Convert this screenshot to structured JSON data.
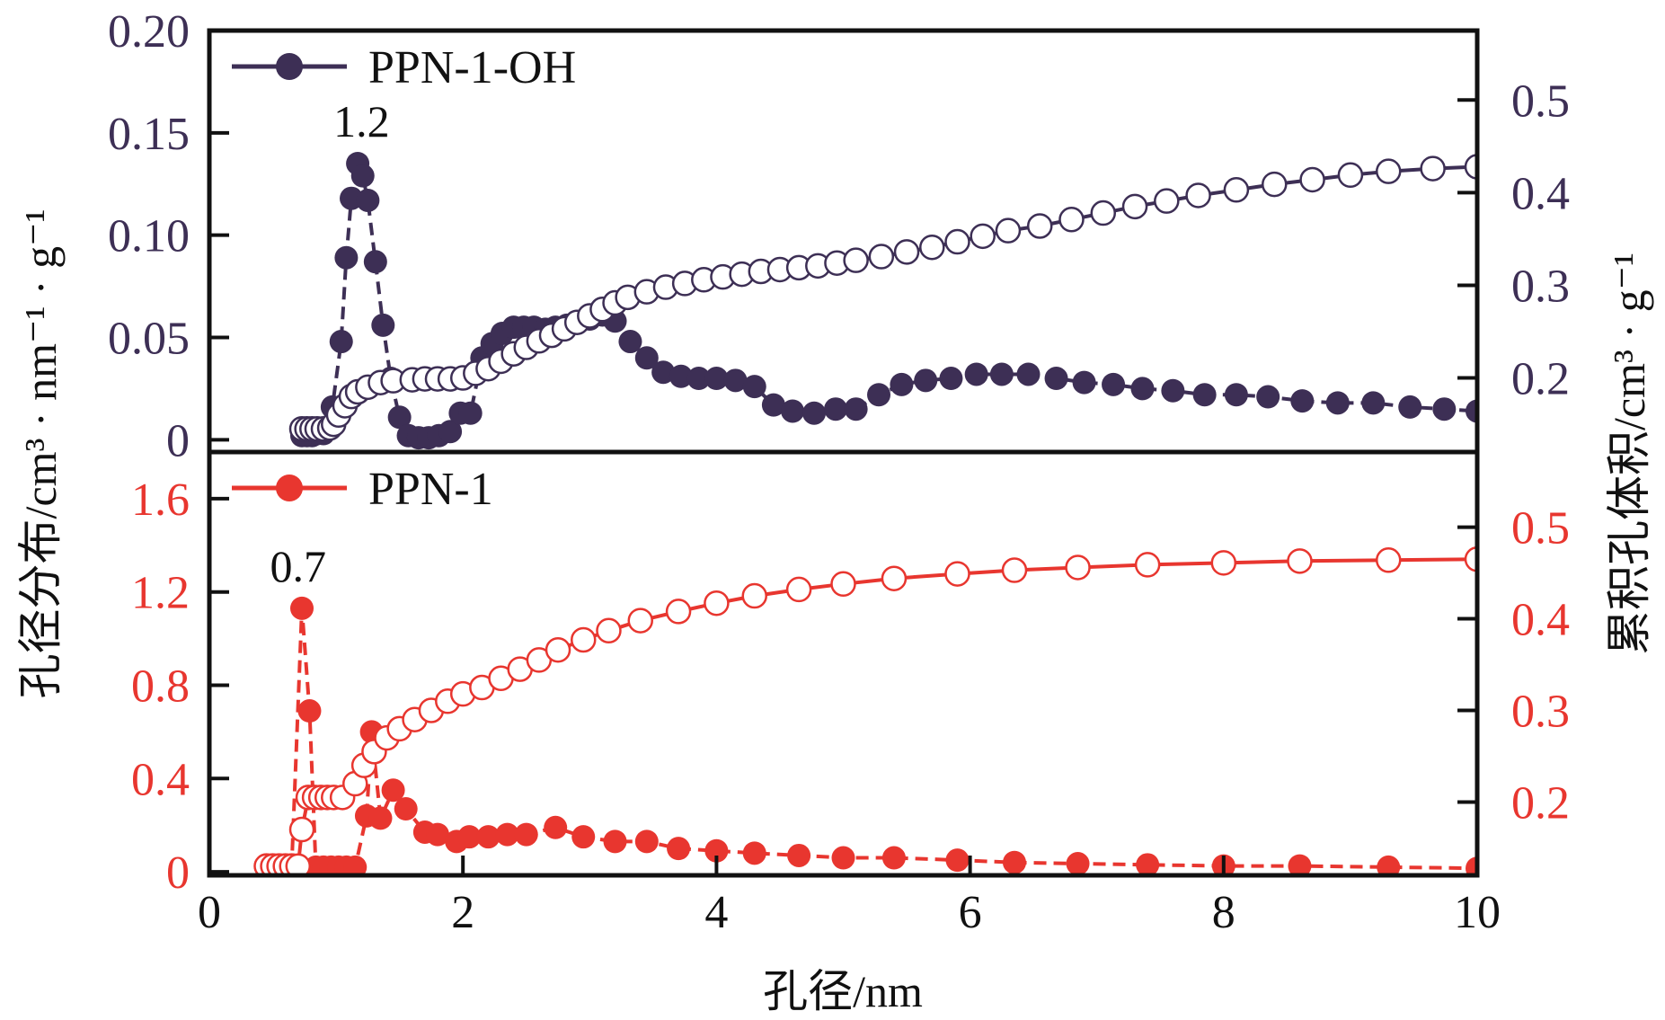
{
  "chart_data": {
    "type": "scatter",
    "x_axis": {
      "label": "孔径/nm",
      "range": [
        0,
        10
      ],
      "ticks": [
        0,
        2,
        4,
        6,
        8,
        10
      ],
      "tick_labels": [
        "0",
        "2",
        "4",
        "6",
        "8",
        "10"
      ]
    },
    "left_axis_label": "孔径分布/cm³ · nm⁻¹ · g⁻¹",
    "right_axis_label": "累积孔体积/cm³ · g⁻¹",
    "colors": {
      "ppn1_oh": "#3d2f55",
      "ppn1": "#e8362f",
      "frame": "#111111"
    },
    "panels": [
      {
        "name": "PPN-1-OH",
        "legend": "PPN-1-OH",
        "color_key": "ppn1_oh",
        "annotation": {
          "text": "1.2",
          "x": 1.2
        },
        "left_axis": {
          "range": [
            -0.006,
            0.2
          ],
          "ticks": [
            0,
            0.05,
            0.1,
            0.15,
            0.2
          ],
          "tick_labels": [
            "0",
            "0.05",
            "0.10",
            "0.15",
            "0.20"
          ]
        },
        "right_axis": {
          "range": [
            0.12,
            0.575
          ],
          "ticks": [
            0.2,
            0.3,
            0.4,
            0.5
          ],
          "tick_labels": [
            "0.2",
            "0.3",
            "0.4",
            "0.5"
          ]
        },
        "series": [
          {
            "name": "PPN-1-OH pore size distribution",
            "axis": "left",
            "marker": "filled",
            "x": [
              0.73,
              0.77,
              0.81,
              0.85,
              0.9,
              0.97,
              1.04,
              1.08,
              1.12,
              1.17,
              1.21,
              1.25,
              1.31,
              1.37,
              1.43,
              1.5,
              1.57,
              1.65,
              1.73,
              1.81,
              1.9,
              1.98,
              2.06,
              2.15,
              2.23,
              2.31,
              2.4,
              2.48,
              2.56,
              2.65,
              2.73,
              2.82,
              2.9,
              3.0,
              3.1,
              3.2,
              3.32,
              3.45,
              3.58,
              3.72,
              3.86,
              4.0,
              4.15,
              4.3,
              4.45,
              4.6,
              4.77,
              4.94,
              5.1,
              5.28,
              5.46,
              5.65,
              5.85,
              6.05,
              6.25,
              6.46,
              6.68,
              6.9,
              7.13,
              7.36,
              7.6,
              7.85,
              8.1,
              8.35,
              8.62,
              8.9,
              9.18,
              9.47,
              9.74,
              10.0
            ],
            "y": [
              0.002,
              0.002,
              0.002,
              0.003,
              0.003,
              0.016,
              0.048,
              0.089,
              0.118,
              0.135,
              0.129,
              0.117,
              0.087,
              0.056,
              0.03,
              0.011,
              0.002,
              0.001,
              0.001,
              0.002,
              0.004,
              0.013,
              0.013,
              0.04,
              0.047,
              0.052,
              0.055,
              0.055,
              0.055,
              0.054,
              0.055,
              0.056,
              0.057,
              0.059,
              0.061,
              0.058,
              0.048,
              0.04,
              0.033,
              0.031,
              0.03,
              0.03,
              0.029,
              0.026,
              0.017,
              0.014,
              0.013,
              0.015,
              0.015,
              0.022,
              0.027,
              0.029,
              0.03,
              0.032,
              0.032,
              0.032,
              0.03,
              0.028,
              0.027,
              0.025,
              0.024,
              0.022,
              0.022,
              0.021,
              0.019,
              0.018,
              0.018,
              0.016,
              0.015,
              0.014
            ]
          },
          {
            "name": "PPN-1-OH cumulative pore volume",
            "axis": "right",
            "marker": "open",
            "x": [
              0.73,
              0.77,
              0.81,
              0.85,
              0.9,
              0.95,
              0.98,
              1.02,
              1.07,
              1.12,
              1.17,
              1.25,
              1.35,
              1.45,
              1.6,
              1.7,
              1.8,
              1.9,
              2.0,
              2.1,
              2.2,
              2.3,
              2.4,
              2.5,
              2.6,
              2.7,
              2.8,
              2.9,
              3.0,
              3.1,
              3.2,
              3.3,
              3.45,
              3.6,
              3.75,
              3.9,
              4.05,
              4.2,
              4.35,
              4.5,
              4.65,
              4.8,
              4.95,
              5.1,
              5.3,
              5.5,
              5.7,
              5.9,
              6.1,
              6.3,
              6.55,
              6.8,
              7.05,
              7.3,
              7.55,
              7.8,
              8.1,
              8.4,
              8.7,
              9.0,
              9.3,
              9.65,
              10.0
            ],
            "y": [
              0.145,
              0.145,
              0.145,
              0.145,
              0.145,
              0.146,
              0.15,
              0.16,
              0.17,
              0.18,
              0.185,
              0.19,
              0.195,
              0.197,
              0.198,
              0.199,
              0.199,
              0.199,
              0.2,
              0.205,
              0.21,
              0.218,
              0.226,
              0.233,
              0.24,
              0.246,
              0.253,
              0.26,
              0.267,
              0.274,
              0.281,
              0.287,
              0.293,
              0.298,
              0.302,
              0.306,
              0.309,
              0.312,
              0.315,
              0.317,
              0.319,
              0.321,
              0.324,
              0.327,
              0.331,
              0.336,
              0.341,
              0.347,
              0.353,
              0.359,
              0.364,
              0.371,
              0.378,
              0.385,
              0.391,
              0.397,
              0.403,
              0.409,
              0.414,
              0.419,
              0.423,
              0.426,
              0.428
            ]
          }
        ]
      },
      {
        "name": "PPN-1",
        "legend": "PPN-1",
        "color_key": "ppn1",
        "annotation": {
          "text": "0.7",
          "x": 0.7
        },
        "left_axis": {
          "range": [
            -0.015,
            1.8
          ],
          "ticks": [
            0,
            0.4,
            0.8,
            1.2,
            1.6
          ],
          "tick_labels": [
            "0",
            "0.4",
            "0.8",
            "1.2",
            "1.6"
          ]
        },
        "right_axis": {
          "range": [
            0.12,
            0.582
          ],
          "ticks": [
            0.2,
            0.3,
            0.4,
            0.5
          ],
          "tick_labels": [
            "0.2",
            "0.3",
            "0.4",
            "0.5"
          ]
        },
        "series": [
          {
            "name": "PPN-1 pore size distribution",
            "axis": "left",
            "marker": "filled",
            "x": [
              0.45,
              0.5,
              0.55,
              0.6,
              0.65,
              0.73,
              0.79,
              0.84,
              0.9,
              0.96,
              1.02,
              1.08,
              1.15,
              1.24,
              1.28,
              1.35,
              1.45,
              1.55,
              1.7,
              1.8,
              1.95,
              2.05,
              2.2,
              2.35,
              2.5,
              2.73,
              2.95,
              3.2,
              3.45,
              3.7,
              4.0,
              4.3,
              4.65,
              5.0,
              5.4,
              5.9,
              6.35,
              6.85,
              7.4,
              8.0,
              8.6,
              9.3,
              10.0
            ],
            "y": [
              0.03,
              0.03,
              0.03,
              0.03,
              0.03,
              1.13,
              0.69,
              0.02,
              0.02,
              0.02,
              0.02,
              0.02,
              0.02,
              0.24,
              0.6,
              0.23,
              0.35,
              0.27,
              0.17,
              0.16,
              0.13,
              0.15,
              0.15,
              0.16,
              0.16,
              0.19,
              0.15,
              0.13,
              0.13,
              0.1,
              0.09,
              0.08,
              0.07,
              0.06,
              0.06,
              0.05,
              0.04,
              0.035,
              0.03,
              0.025,
              0.025,
              0.02,
              0.015
            ]
          },
          {
            "name": "PPN-1 cumulative pore volume",
            "axis": "right",
            "marker": "open",
            "x": [
              0.45,
              0.5,
              0.55,
              0.6,
              0.65,
              0.7,
              0.73,
              0.78,
              0.83,
              0.88,
              0.93,
              0.98,
              1.05,
              1.15,
              1.22,
              1.3,
              1.4,
              1.5,
              1.62,
              1.75,
              1.88,
              2.0,
              2.15,
              2.3,
              2.45,
              2.6,
              2.75,
              2.95,
              3.15,
              3.4,
              3.7,
              4.0,
              4.3,
              4.65,
              5.0,
              5.4,
              5.9,
              6.35,
              6.85,
              7.4,
              8.0,
              8.6,
              9.3,
              10.0
            ],
            "y": [
              0.13,
              0.13,
              0.13,
              0.13,
              0.13,
              0.13,
              0.17,
              0.205,
              0.205,
              0.205,
              0.205,
              0.205,
              0.205,
              0.22,
              0.24,
              0.255,
              0.27,
              0.28,
              0.29,
              0.3,
              0.31,
              0.318,
              0.325,
              0.335,
              0.345,
              0.355,
              0.366,
              0.377,
              0.387,
              0.398,
              0.408,
              0.417,
              0.425,
              0.432,
              0.438,
              0.444,
              0.449,
              0.453,
              0.456,
              0.459,
              0.461,
              0.463,
              0.464,
              0.465
            ]
          }
        ]
      }
    ]
  }
}
